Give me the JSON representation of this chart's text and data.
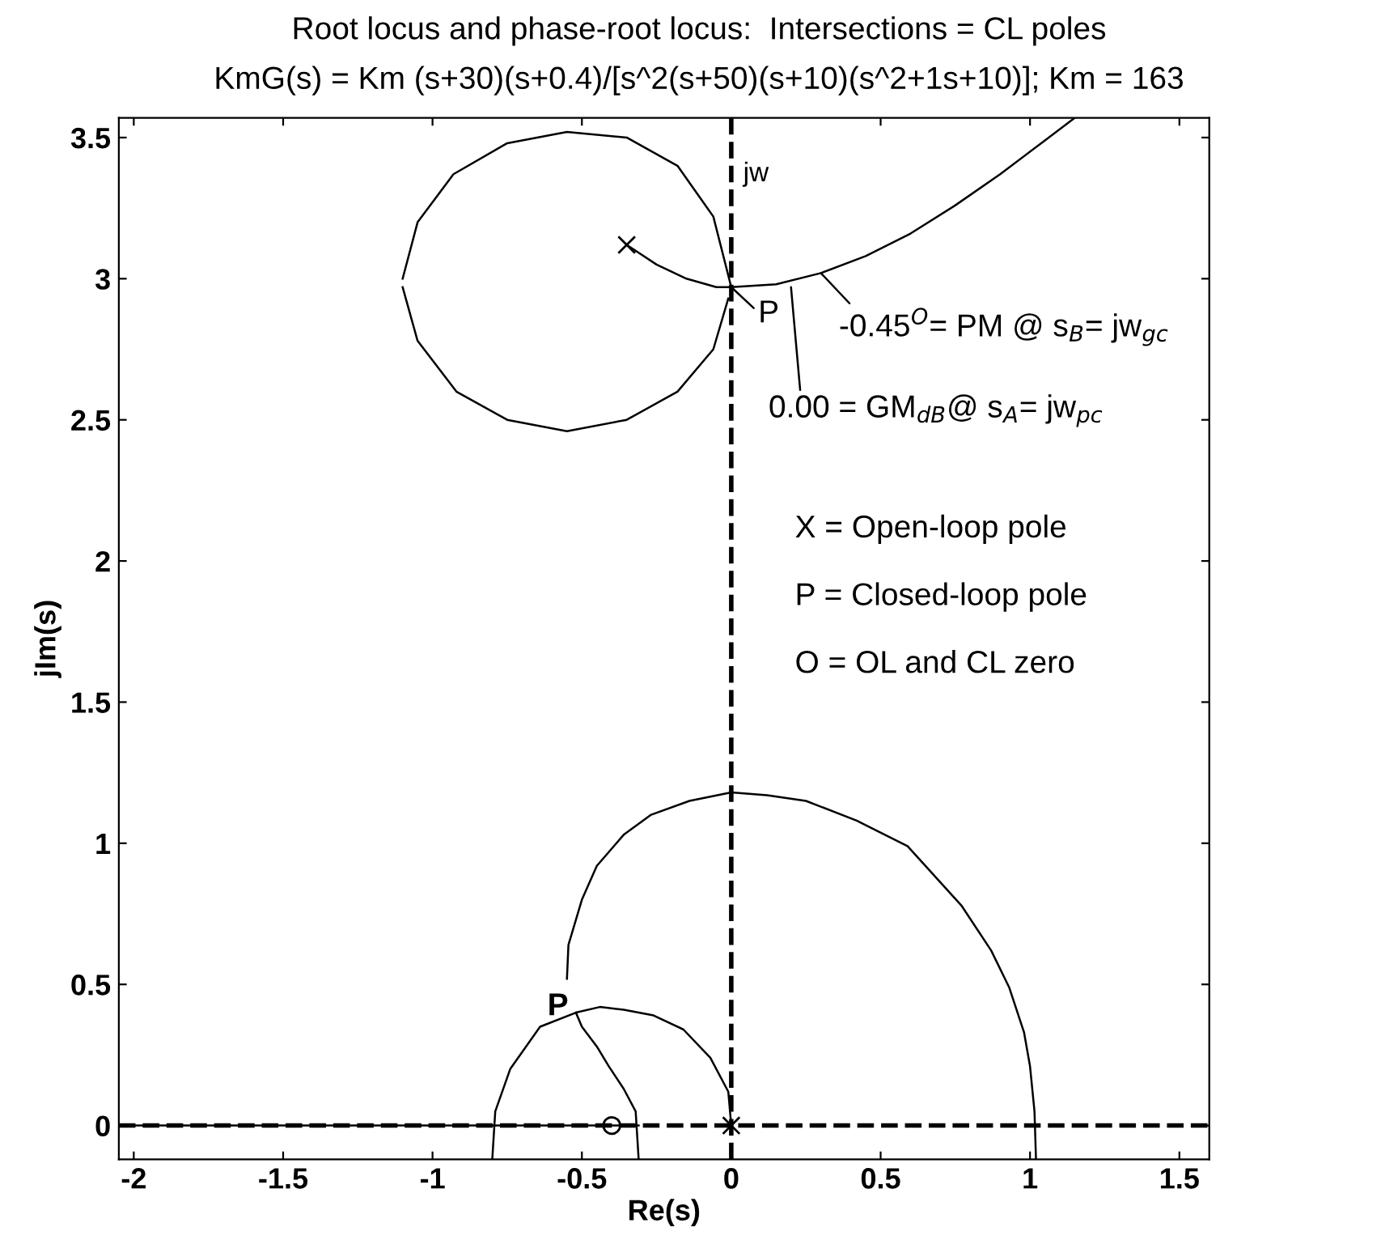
{
  "chart_data": {
    "type": "line",
    "title": "Root locus and phase-root locus:  Intersections = CL poles",
    "subtitle": "KmG(s) = Km (s+30)(s+0.4)/[s^2(s+50)(s+10)(s^2+1s+10)]; Km = 163",
    "xlabel": "Re(s)",
    "ylabel": "jIm(s)",
    "xlim": [
      -2.05,
      1.6
    ],
    "ylim": [
      -0.12,
      3.57
    ],
    "xticks": [
      -2,
      -1.5,
      -1,
      -0.5,
      0,
      0.5,
      1,
      1.5
    ],
    "yticks": [
      0,
      0.5,
      1,
      1.5,
      2,
      2.5,
      3,
      3.5
    ],
    "grid": false,
    "line_style": "solid",
    "series": [
      {
        "color": "#000000",
        "x": [
          -1.1,
          -1.05,
          -0.93,
          -0.75,
          -0.55,
          -0.35,
          -0.18,
          -0.06,
          0
        ],
        "values": [
          3.0,
          3.2,
          3.37,
          3.48,
          3.52,
          3.5,
          3.4,
          3.22,
          2.97
        ]
      },
      {
        "color": "#000000",
        "x": [
          -1.1,
          -1.05,
          -0.92,
          -0.75,
          -0.55,
          -0.35,
          -0.18,
          -0.06,
          -0.01
        ],
        "values": [
          2.97,
          2.78,
          2.6,
          2.5,
          2.46,
          2.5,
          2.6,
          2.75,
          2.93
        ]
      },
      {
        "color": "#000000",
        "x": [
          -0.35,
          -0.25,
          -0.15,
          -0.05,
          0,
          0.15,
          0.3,
          0.45,
          0.6,
          0.75,
          0.9,
          1.05,
          1.15
        ],
        "values": [
          3.12,
          3.05,
          3.0,
          2.97,
          2.97,
          2.98,
          3.02,
          3.08,
          3.16,
          3.26,
          3.37,
          3.49,
          3.57
        ]
      },
      {
        "color": "#000000",
        "x": [
          -0.55,
          -0.545,
          -0.5,
          -0.45,
          -0.36,
          -0.27,
          -0.14,
          0,
          0.12,
          0.25,
          0.42,
          0.59,
          0.77,
          0.87,
          0.93,
          0.98,
          1.0,
          1.015,
          1.02
        ],
        "values": [
          0.52,
          0.64,
          0.8,
          0.92,
          1.03,
          1.1,
          1.15,
          1.18,
          1.17,
          1.15,
          1.08,
          0.99,
          0.78,
          0.62,
          0.49,
          0.33,
          0.21,
          0.05,
          -0.12
        ]
      },
      {
        "color": "#000000",
        "x": [
          -0.8,
          -0.79,
          -0.74,
          -0.64,
          -0.52,
          -0.44,
          -0.36,
          -0.26,
          -0.16,
          -0.07,
          -0.01,
          0
        ],
        "values": [
          -0.12,
          0.05,
          0.2,
          0.35,
          0.4,
          0.42,
          0.41,
          0.39,
          0.34,
          0.24,
          0.12,
          0
        ]
      },
      {
        "color": "#000000",
        "x": [
          -0.52,
          -0.5,
          -0.45,
          -0.41,
          -0.36,
          -0.32,
          -0.31
        ],
        "values": [
          0.4,
          0.35,
          0.28,
          0.21,
          0.13,
          0.05,
          -0.12
        ]
      },
      {
        "color": "#000000",
        "x": [
          -2.05,
          -0.31
        ],
        "values": [
          0,
          0
        ]
      },
      {
        "type": "scatter",
        "marker": "cross",
        "color": "#000000",
        "x": [
          -0.35,
          0
        ],
        "values": [
          3.12,
          0
        ]
      },
      {
        "type": "scatter",
        "marker": "circle",
        "color": "#000000",
        "x": [
          -0.4
        ],
        "values": [
          0
        ]
      }
    ],
    "ref_lines": [
      {
        "axis": "x",
        "value": 0,
        "label": "jw",
        "line_style": "dashed",
        "color": "#000000"
      },
      {
        "axis": "y",
        "value": 0,
        "line_style": "dashed",
        "color": "#000000"
      }
    ],
    "annotations": [
      {
        "text": "P",
        "x": 0,
        "y": 2.97
      },
      {
        "text": "P",
        "x": -0.52,
        "y": 0.42
      },
      {
        "text": "-0.45$^{O}$= PM @ s$_{B}$= jw$_{gc}$",
        "x": 0.3,
        "y": 3.02
      },
      {
        "text": "0.00 = GM$_{dB}$@ s$_{A}$= jw$_{pc}$",
        "x": 0.2,
        "y": 2.97
      },
      "X = Open-loop pole",
      "P = Closed-loop pole",
      "O = OL and CL zero"
    ]
  }
}
